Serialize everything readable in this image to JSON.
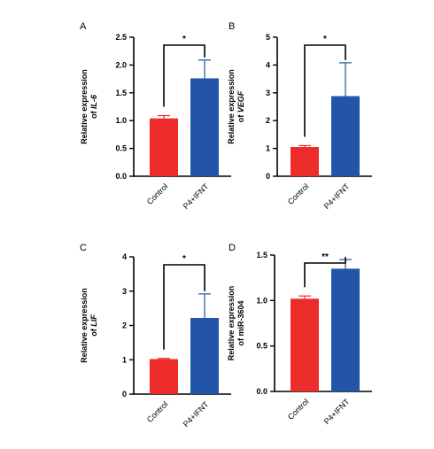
{
  "chart_data": [
    {
      "type": "bar",
      "panel": "A",
      "categories": [
        "Control",
        "P4+IFNT"
      ],
      "values": [
        1.04,
        1.76
      ],
      "errors": [
        0.05,
        0.33
      ],
      "ylabel_line1": "Relative expression",
      "ylabel_line2_prefix": "of ",
      "ylabel_gene": "IL-6",
      "ylim": [
        0,
        2.5
      ],
      "ticks": [
        0,
        0.5,
        1.0,
        1.5,
        2.0,
        2.5
      ],
      "tick_labels": [
        "0.0",
        "0.5",
        "1.0",
        "1.5",
        "2.0",
        "2.5"
      ],
      "significance": "*",
      "colors": [
        "#ee2b2b",
        "#2255a8"
      ]
    },
    {
      "type": "bar",
      "panel": "B",
      "categories": [
        "Control",
        "P4+IFNT"
      ],
      "values": [
        1.05,
        2.88
      ],
      "errors": [
        0.05,
        1.2
      ],
      "ylabel_line1": "Relative expression",
      "ylabel_line2_prefix": "of ",
      "ylabel_gene": "VEGF",
      "ylim": [
        0,
        5
      ],
      "ticks": [
        0,
        1,
        2,
        3,
        4,
        5
      ],
      "tick_labels": [
        "0",
        "1",
        "2",
        "3",
        "4",
        "5"
      ],
      "significance": "*",
      "colors": [
        "#ee2b2b",
        "#2255a8"
      ]
    },
    {
      "type": "bar",
      "panel": "C",
      "categories": [
        "Control",
        "P4+IFNT"
      ],
      "values": [
        1.02,
        2.22
      ],
      "errors": [
        0.02,
        0.7
      ],
      "ylabel_line1": "Relative expression",
      "ylabel_line2_prefix": "of ",
      "ylabel_gene": "LIF",
      "ylim": [
        0,
        4
      ],
      "ticks": [
        0,
        1,
        2,
        3,
        4
      ],
      "tick_labels": [
        "0",
        "1",
        "2",
        "3",
        "4"
      ],
      "significance": "*",
      "colors": [
        "#ee2b2b",
        "#2255a8"
      ]
    },
    {
      "type": "bar",
      "panel": "D",
      "categories": [
        "Control",
        "P4+IFNT"
      ],
      "values": [
        1.02,
        1.35
      ],
      "errors": [
        0.03,
        0.1
      ],
      "ylabel_line1": "Relative expression",
      "ylabel_line2_prefix": "",
      "ylabel_gene": "of miR-3604",
      "ylim": [
        0,
        1.5
      ],
      "ticks": [
        0,
        0.5,
        1.0,
        1.5
      ],
      "tick_labels": [
        "0.0",
        "0.5",
        "1.0",
        "1.5"
      ],
      "significance": "**",
      "colors": [
        "#ee2b2b",
        "#2255a8"
      ]
    }
  ]
}
